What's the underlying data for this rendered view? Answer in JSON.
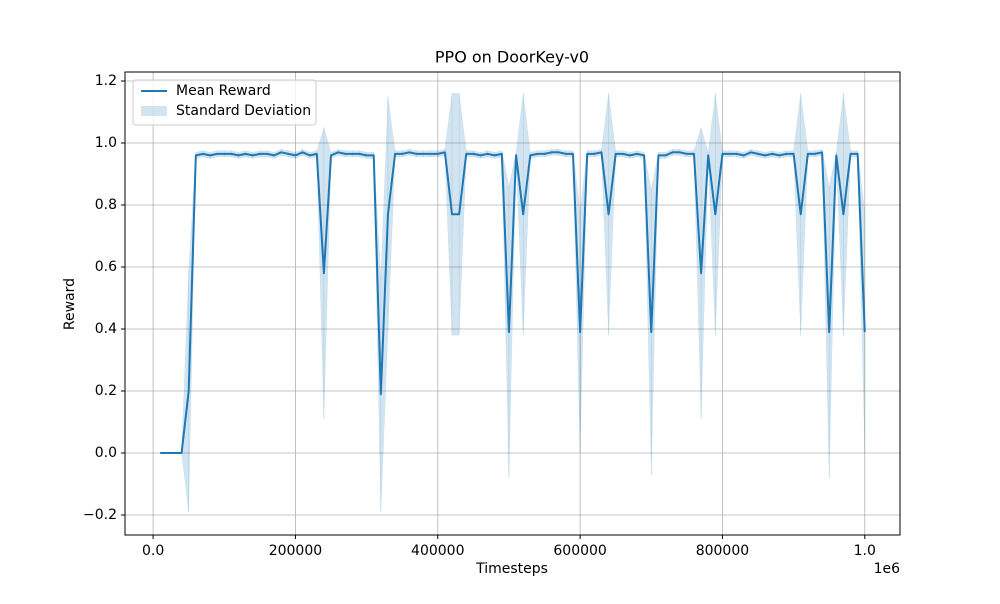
{
  "chart_data": {
    "type": "line",
    "title": "PPO on DoorKey-v0",
    "x_label": "Timesteps",
    "y_label": "Reward",
    "x_offset_label": "1e6",
    "x": [
      10000,
      20000,
      30000,
      40000,
      50000,
      60000,
      70000,
      80000,
      90000,
      100000,
      110000,
      120000,
      130000,
      140000,
      150000,
      160000,
      170000,
      180000,
      190000,
      200000,
      210000,
      220000,
      230000,
      240000,
      250000,
      260000,
      270000,
      280000,
      290000,
      300000,
      310000,
      320000,
      330000,
      340000,
      350000,
      360000,
      370000,
      380000,
      390000,
      400000,
      410000,
      420000,
      430000,
      440000,
      450000,
      460000,
      470000,
      480000,
      490000,
      500000,
      510000,
      520000,
      530000,
      540000,
      550000,
      560000,
      570000,
      580000,
      590000,
      600000,
      610000,
      620000,
      630000,
      640000,
      650000,
      660000,
      670000,
      680000,
      690000,
      700000,
      710000,
      720000,
      730000,
      740000,
      750000,
      760000,
      770000,
      780000,
      790000,
      800000,
      810000,
      820000,
      830000,
      840000,
      850000,
      860000,
      870000,
      880000,
      890000,
      900000,
      910000,
      920000,
      930000,
      940000,
      950000,
      960000,
      970000,
      980000,
      990000,
      1000000
    ],
    "series": [
      {
        "name": "Mean Reward",
        "color": "#1f77b4",
        "values": [
          0,
          0,
          0,
          0,
          0.2,
          0.96,
          0.965,
          0.96,
          0.965,
          0.965,
          0.965,
          0.96,
          0.965,
          0.96,
          0.965,
          0.965,
          0.96,
          0.97,
          0.965,
          0.96,
          0.97,
          0.96,
          0.965,
          0.58,
          0.96,
          0.97,
          0.965,
          0.965,
          0.965,
          0.96,
          0.96,
          0.19,
          0.77,
          0.965,
          0.965,
          0.97,
          0.965,
          0.965,
          0.965,
          0.965,
          0.97,
          0.77,
          0.77,
          0.965,
          0.965,
          0.96,
          0.965,
          0.96,
          0.965,
          0.39,
          0.96,
          0.77,
          0.96,
          0.965,
          0.965,
          0.97,
          0.97,
          0.965,
          0.965,
          0.39,
          0.965,
          0.965,
          0.97,
          0.77,
          0.965,
          0.965,
          0.96,
          0.965,
          0.96,
          0.39,
          0.96,
          0.96,
          0.97,
          0.97,
          0.965,
          0.965,
          0.58,
          0.96,
          0.77,
          0.965,
          0.965,
          0.965,
          0.96,
          0.97,
          0.965,
          0.96,
          0.965,
          0.96,
          0.965,
          0.965,
          0.77,
          0.965,
          0.965,
          0.97,
          0.39,
          0.96,
          0.77,
          0.965,
          0.965,
          0.39
        ]
      },
      {
        "name": "Standard Deviation",
        "color": "#1f77b4",
        "values": [
          0,
          0,
          0,
          0,
          0.39,
          0.01,
          0.01,
          0.01,
          0.01,
          0.01,
          0.01,
          0.01,
          0.01,
          0.01,
          0.01,
          0.01,
          0.01,
          0.01,
          0.01,
          0.01,
          0.01,
          0.01,
          0.01,
          0.47,
          0.01,
          0.01,
          0.01,
          0.01,
          0.01,
          0.01,
          0.01,
          0.38,
          0.38,
          0.01,
          0.01,
          0.01,
          0.01,
          0.01,
          0.01,
          0.01,
          0.01,
          0.39,
          0.39,
          0.01,
          0.01,
          0.01,
          0.01,
          0.01,
          0.01,
          0.47,
          0.01,
          0.39,
          0.01,
          0.01,
          0.01,
          0.01,
          0.01,
          0.01,
          0.01,
          0.39,
          0.01,
          0.01,
          0.01,
          0.39,
          0.01,
          0.01,
          0.01,
          0.01,
          0.01,
          0.46,
          0.01,
          0.01,
          0.01,
          0.01,
          0.01,
          0.01,
          0.47,
          0.01,
          0.39,
          0.01,
          0.01,
          0.01,
          0.01,
          0.01,
          0.01,
          0.01,
          0.01,
          0.01,
          0.01,
          0.01,
          0.39,
          0.01,
          0.01,
          0.01,
          0.47,
          0.01,
          0.39,
          0.01,
          0.01,
          0.39
        ]
      }
    ],
    "xlim": [
      -39500,
      1049500
    ],
    "ylim": [
      -0.2645,
      1.229
    ],
    "xticks": [
      {
        "value": 0,
        "label": "0.0"
      },
      200000,
      400000,
      600000,
      800000,
      {
        "value": 1000000,
        "label": "1.0"
      }
    ],
    "yticks": [
      {
        "value": -0.2,
        "label": "−0.2"
      },
      {
        "value": 0,
        "label": "0.0"
      },
      0.2,
      0.4,
      0.6,
      0.8,
      {
        "value": 1,
        "label": "1.0"
      },
      1.2
    ],
    "grid": true,
    "legend": "upper left"
  }
}
